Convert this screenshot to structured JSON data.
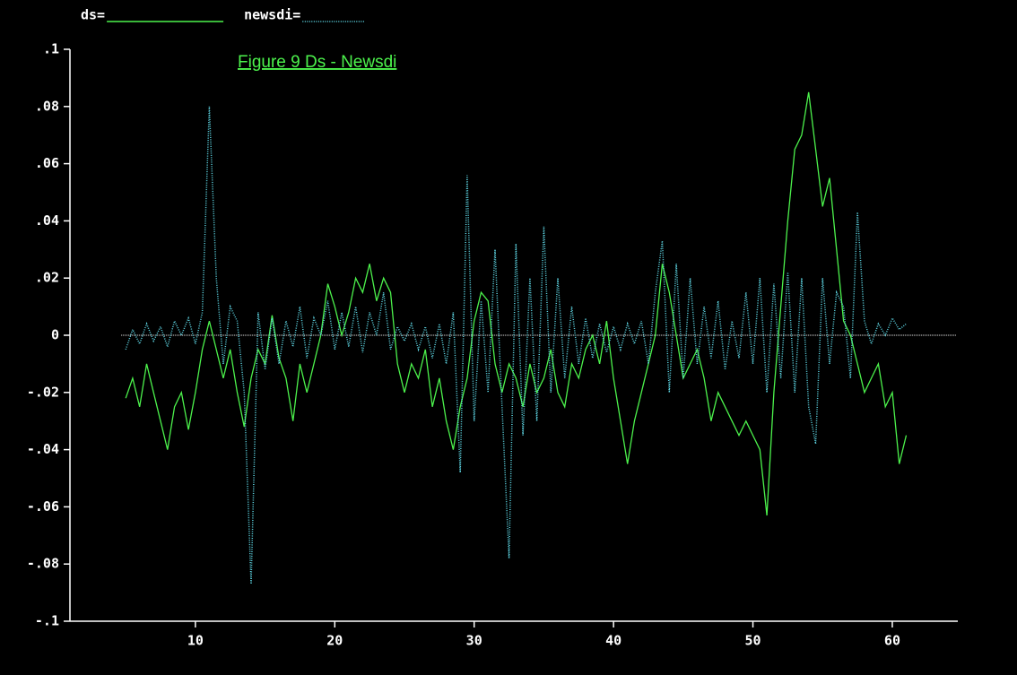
{
  "chart_data": {
    "type": "line",
    "title": "Figure 9  Ds - Newsdi",
    "x": [
      5,
      5.5,
      6,
      6.5,
      7,
      7.5,
      8,
      8.5,
      9,
      9.5,
      10,
      10.5,
      11,
      11.5,
      12,
      12.5,
      13,
      13.5,
      14,
      14.5,
      15,
      15.5,
      16,
      16.5,
      17,
      17.5,
      18,
      18.5,
      19,
      19.5,
      20,
      20.5,
      21,
      21.5,
      22,
      22.5,
      23,
      23.5,
      24,
      24.5,
      25,
      25.5,
      26,
      26.5,
      27,
      27.5,
      28,
      28.5,
      29,
      29.5,
      30,
      30.5,
      31,
      31.5,
      32,
      32.5,
      33,
      33.5,
      34,
      34.5,
      35,
      35.5,
      36,
      36.5,
      37,
      37.5,
      38,
      38.5,
      39,
      39.5,
      40,
      40.5,
      41,
      41.5,
      42,
      42.5,
      43,
      43.5,
      44,
      44.5,
      45,
      45.5,
      46,
      46.5,
      47,
      47.5,
      48,
      48.5,
      49,
      49.5,
      50,
      50.5,
      51,
      51.5,
      52,
      52.5,
      53,
      53.5,
      54,
      54.5,
      55,
      55.5,
      56,
      56.5,
      57,
      57.5,
      58,
      58.5,
      59,
      59.5,
      60,
      60.5,
      61
    ],
    "series": [
      {
        "name": "ds=",
        "color": "#4cf24c",
        "dash": false,
        "values": [
          -0.022,
          -0.015,
          -0.025,
          -0.01,
          -0.02,
          -0.03,
          -0.04,
          -0.025,
          -0.02,
          -0.033,
          -0.02,
          -0.005,
          0.005,
          -0.005,
          -0.015,
          -0.005,
          -0.02,
          -0.032,
          -0.015,
          -0.005,
          -0.01,
          0.007,
          -0.008,
          -0.015,
          -0.03,
          -0.01,
          -0.02,
          -0.01,
          0.0,
          0.018,
          0.01,
          0.0,
          0.008,
          0.02,
          0.015,
          0.025,
          0.012,
          0.02,
          0.015,
          -0.01,
          -0.02,
          -0.01,
          -0.015,
          -0.005,
          -0.025,
          -0.015,
          -0.03,
          -0.04,
          -0.025,
          -0.015,
          0.005,
          0.015,
          0.012,
          -0.01,
          -0.02,
          -0.01,
          -0.015,
          -0.025,
          -0.01,
          -0.02,
          -0.015,
          -0.005,
          -0.02,
          -0.025,
          -0.01,
          -0.015,
          -0.005,
          0.0,
          -0.01,
          0.005,
          -0.015,
          -0.03,
          -0.045,
          -0.03,
          -0.02,
          -0.01,
          0.0,
          0.025,
          0.015,
          0.0,
          -0.015,
          -0.01,
          -0.005,
          -0.015,
          -0.03,
          -0.02,
          -0.025,
          -0.03,
          -0.035,
          -0.03,
          -0.035,
          -0.04,
          -0.063,
          -0.02,
          0.01,
          0.04,
          0.065,
          0.07,
          0.085,
          0.065,
          0.045,
          0.055,
          0.03,
          0.005,
          0.0,
          -0.01,
          -0.02,
          -0.015,
          -0.01,
          -0.025,
          -0.02,
          -0.045,
          -0.035
        ]
      },
      {
        "name": "newsdi=",
        "color": "#5fd8e6",
        "dash": true,
        "values": [
          -0.005,
          0.002,
          -0.003,
          0.004,
          -0.002,
          0.003,
          -0.004,
          0.005,
          0.0,
          0.006,
          -0.003,
          0.008,
          0.08,
          0.02,
          -0.01,
          0.01,
          0.005,
          -0.02,
          -0.087,
          0.008,
          -0.012,
          0.006,
          -0.01,
          0.005,
          -0.004,
          0.01,
          -0.008,
          0.006,
          0.0,
          0.012,
          -0.005,
          0.008,
          -0.004,
          0.01,
          -0.006,
          0.008,
          0.0,
          0.015,
          -0.005,
          0.003,
          -0.002,
          0.004,
          -0.005,
          0.003,
          -0.008,
          0.004,
          -0.01,
          0.008,
          -0.048,
          0.056,
          -0.03,
          0.012,
          -0.02,
          0.03,
          -0.025,
          -0.078,
          0.032,
          -0.035,
          0.02,
          -0.03,
          0.038,
          -0.02,
          0.02,
          -0.015,
          0.01,
          -0.01,
          0.006,
          -0.008,
          0.004,
          -0.006,
          0.003,
          -0.005,
          0.004,
          -0.003,
          0.005,
          -0.01,
          0.015,
          0.033,
          -0.02,
          0.025,
          -0.015,
          0.02,
          -0.01,
          0.01,
          -0.008,
          0.012,
          -0.012,
          0.005,
          -0.008,
          0.015,
          -0.01,
          0.02,
          -0.02,
          0.018,
          -0.015,
          0.022,
          -0.02,
          0.02,
          -0.025,
          -0.038,
          0.02,
          -0.01,
          0.015,
          0.01,
          -0.015,
          0.043,
          0.005,
          -0.003,
          0.004,
          0.0,
          0.006,
          0.002,
          0.004
        ]
      }
    ],
    "xlim": [
      1,
      64.7
    ],
    "xticks": [
      10,
      20,
      30,
      40,
      50,
      60
    ],
    "ylim": [
      -0.1,
      0.1
    ],
    "yticks": [
      {
        "value": 0.1,
        "label": ".1"
      },
      {
        "value": 0.08,
        "label": ".08"
      },
      {
        "value": 0.06,
        "label": ".06"
      },
      {
        "value": 0.04,
        "label": ".04"
      },
      {
        "value": 0.02,
        "label": ".02"
      },
      0,
      {
        "value": -0.02,
        "label": "-.02"
      },
      {
        "value": -0.04,
        "label": "-.04"
      },
      {
        "value": -0.06,
        "label": "-.06"
      },
      {
        "value": -0.08,
        "label": "-.08"
      },
      {
        "value": -0.1,
        "label": "-.1"
      }
    ],
    "hline": 0
  }
}
